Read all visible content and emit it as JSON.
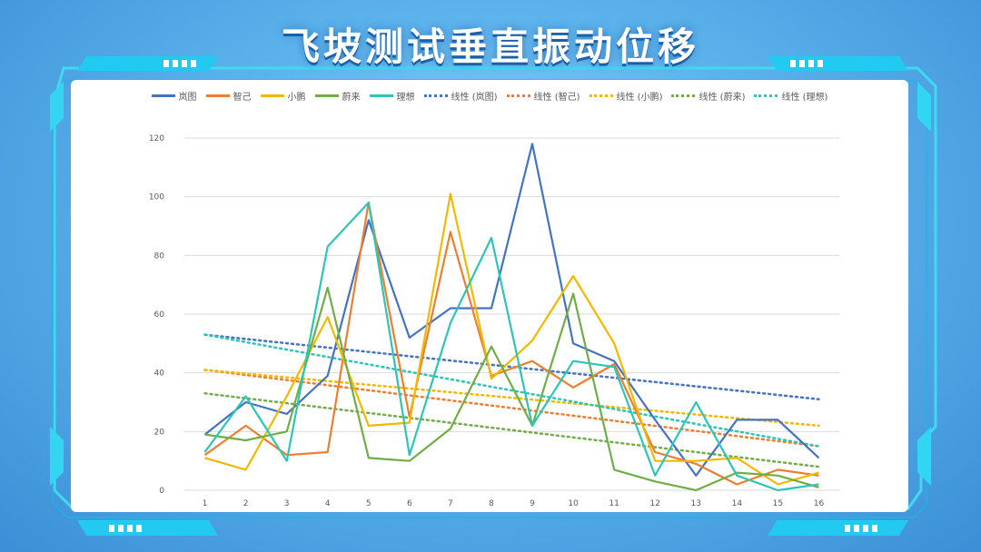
{
  "title": "飞坡测试垂直振动位移",
  "chart_data": {
    "type": "line",
    "x": [
      1,
      2,
      3,
      4,
      5,
      6,
      7,
      8,
      9,
      10,
      11,
      12,
      13,
      14,
      15,
      16
    ],
    "ylim": [
      0,
      120
    ],
    "yticks": [
      0,
      20,
      40,
      60,
      80,
      100,
      120
    ],
    "series": [
      {
        "name": "岚图",
        "color": "#4472c4",
        "values": [
          19,
          30,
          26,
          39,
          92,
          52,
          62,
          62,
          118,
          50,
          44,
          24,
          5,
          24,
          24,
          11
        ]
      },
      {
        "name": "智己",
        "color": "#ed7d31",
        "values": [
          12,
          22,
          12,
          13,
          98,
          25,
          88,
          39,
          44,
          35,
          43,
          13,
          9,
          2,
          7,
          5
        ]
      },
      {
        "name": "小鹏",
        "color": "#f2b800",
        "values": [
          11,
          7,
          32,
          59,
          22,
          23,
          101,
          38,
          51,
          73,
          50,
          10,
          10,
          11,
          2,
          6
        ]
      },
      {
        "name": "蔚来",
        "color": "#70ad47",
        "values": [
          19,
          17,
          20,
          69,
          11,
          10,
          21,
          49,
          22,
          67,
          7,
          3,
          0,
          6,
          5,
          1
        ]
      },
      {
        "name": "理想",
        "color": "#2ec4b6",
        "values": [
          13,
          32,
          10,
          83,
          98,
          12,
          57,
          86,
          22,
          44,
          42,
          5,
          30,
          5,
          0,
          2
        ]
      }
    ],
    "trendlines": [
      {
        "name": "线性 (岚图)",
        "color": "#4472c4",
        "start": 53,
        "end": 31
      },
      {
        "name": "线性 (智己)",
        "color": "#ed7d31",
        "start": 41,
        "end": 15
      },
      {
        "name": "线性 (小鹏)",
        "color": "#f2b800",
        "start": 41,
        "end": 22
      },
      {
        "name": "线性 (蔚来)",
        "color": "#70ad47",
        "start": 33,
        "end": 8
      },
      {
        "name": "线性 (理想)",
        "color": "#2ec4b6",
        "start": 53,
        "end": 15
      }
    ]
  }
}
